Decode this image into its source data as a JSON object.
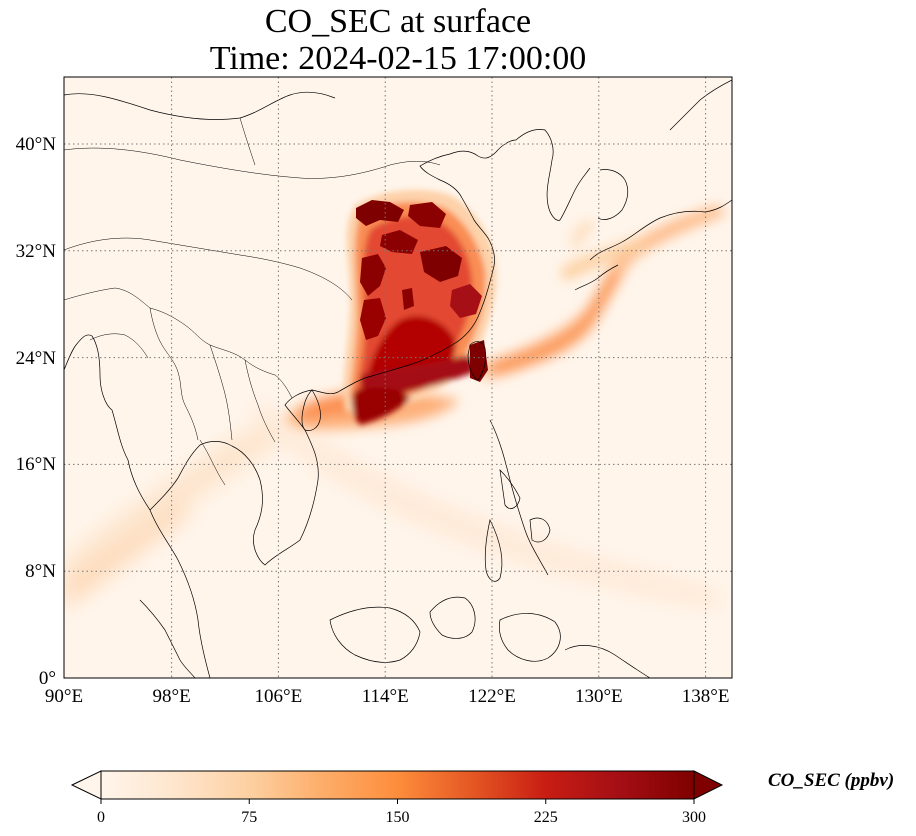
{
  "title": {
    "line1": "CO_SEC at surface",
    "line2": "Time: 2024-02-15 17:00:00"
  },
  "map": {
    "x_ticks": [
      "90°E",
      "98°E",
      "106°E",
      "114°E",
      "122°E",
      "130°E",
      "138°E"
    ],
    "y_ticks": [
      "0°",
      "8°N",
      "16°N",
      "24°N",
      "32°N",
      "40°N"
    ],
    "lon_values": [
      90,
      98,
      106,
      114,
      122,
      130,
      138
    ],
    "lat_values": [
      0,
      8,
      16,
      24,
      32,
      40
    ],
    "extent": {
      "lon_min": 90,
      "lon_max": 140,
      "lat_min": 0,
      "lat_max": 45
    },
    "gridlines": "dotted",
    "background_color": "#fff5eb",
    "land_outline_color": "#000000"
  },
  "colorbar": {
    "label": "CO_SEC (ppbv)",
    "ticks": [
      "0",
      "75",
      "150",
      "225",
      "300"
    ],
    "min": 0,
    "max": 300,
    "extend": "both",
    "colormap": "OrRd",
    "colors": [
      "#fff5eb",
      "#fee6ce",
      "#fdd0a2",
      "#fdae6b",
      "#fd8d3c",
      "#f16913",
      "#d94801",
      "#a63603",
      "#7f2704"
    ]
  }
}
